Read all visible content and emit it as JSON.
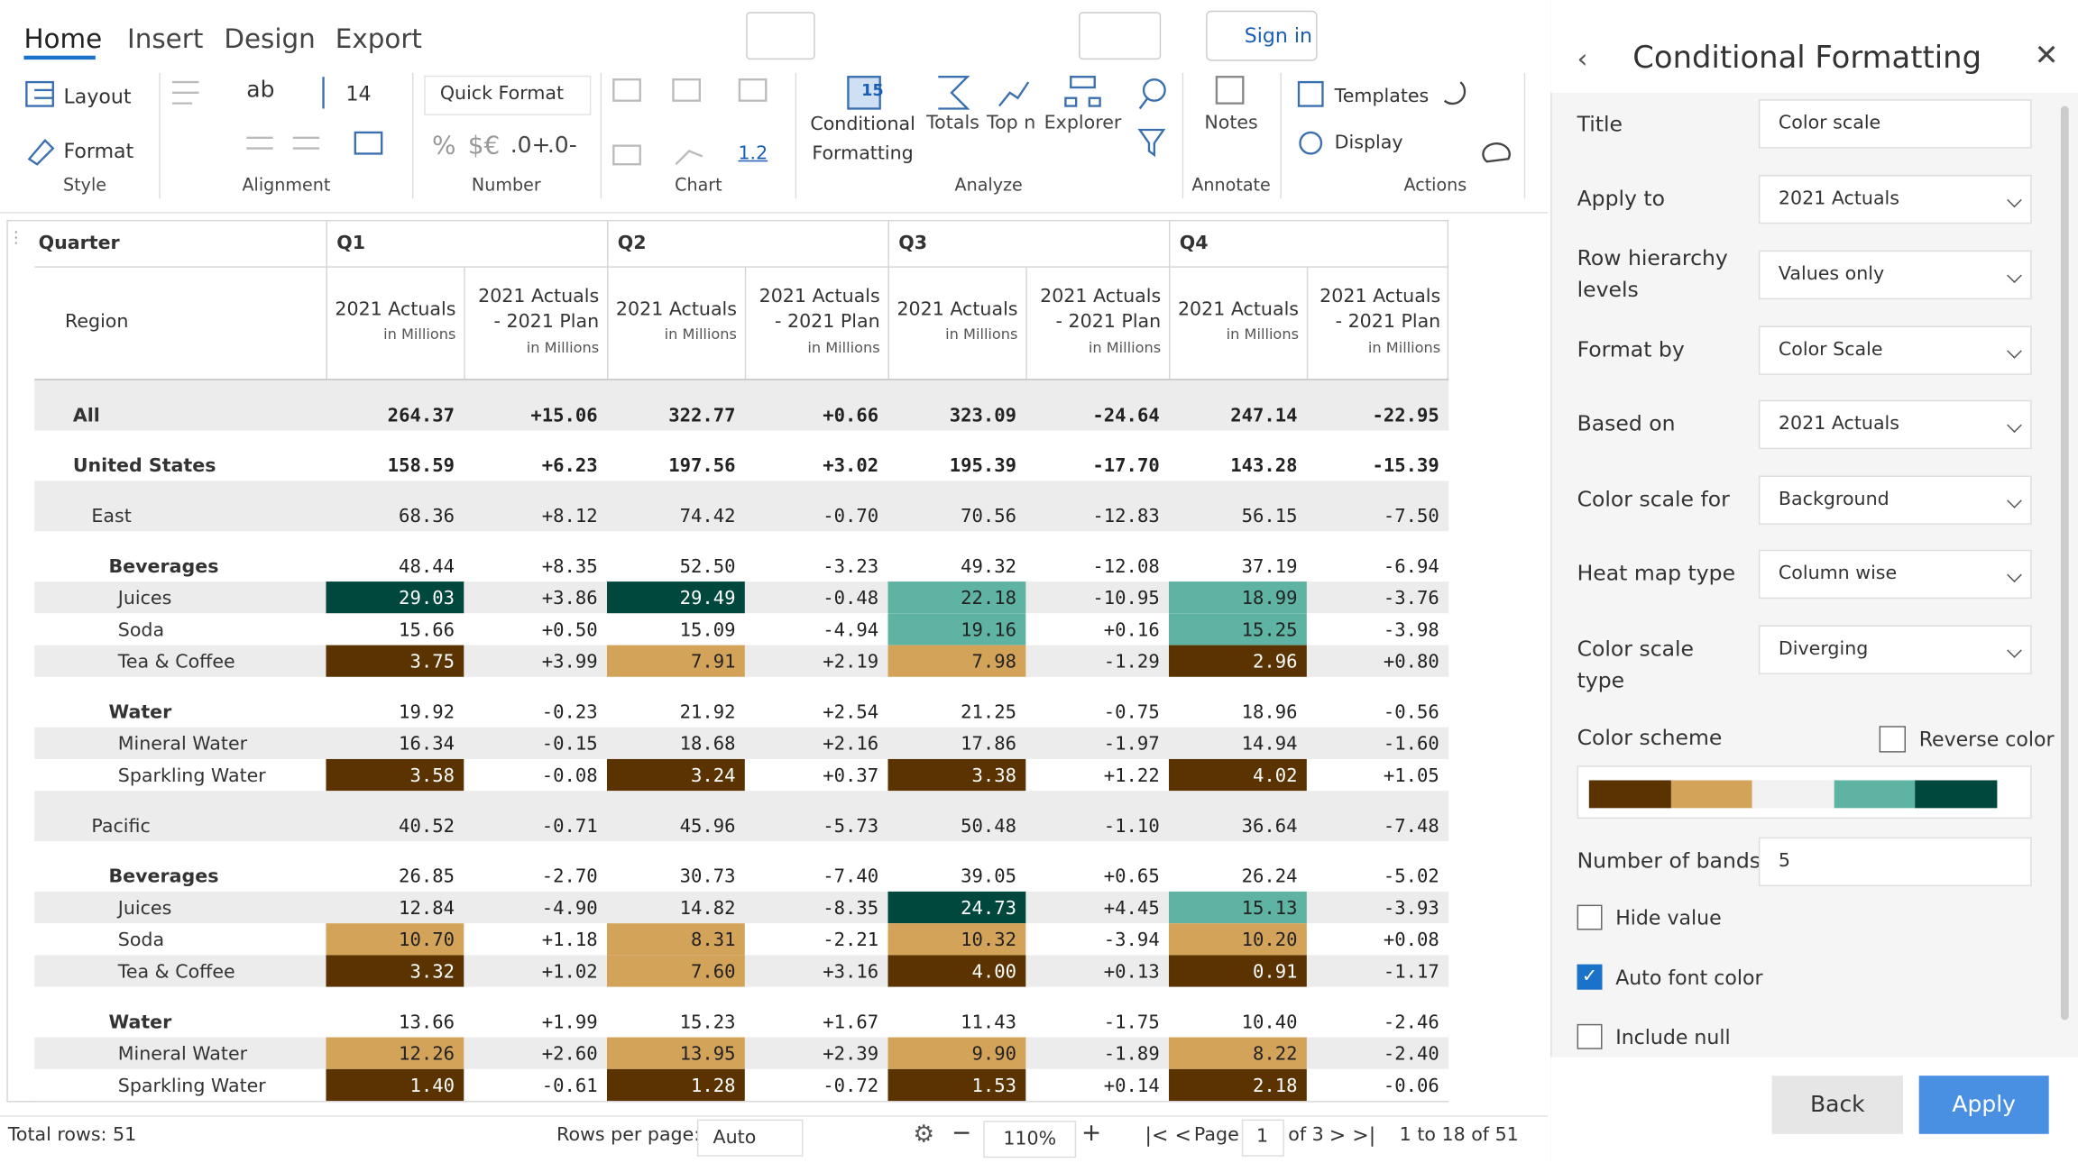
{
  "toolbar": {
    "tabs": [
      "Home",
      "Insert",
      "Design",
      "Export"
    ],
    "sign_in": "Sign in",
    "style": {
      "label": "Style",
      "layout": "Layout",
      "format": "Format"
    },
    "alignment": {
      "label": "Alignment",
      "wrap": "ab",
      "font_size": "14"
    },
    "number": {
      "label": "Number",
      "quick_format": "Quick Format",
      "percent": "%",
      "currency": "$€",
      "increase_decimals": ".0+",
      "decrease_decimals": ".0-"
    },
    "chart": {
      "label": "Chart",
      "value": "1.2"
    },
    "analyze": {
      "label": "Analyze",
      "conditional_formatting": "Conditional Formatting",
      "totals": "Totals",
      "top_n": "Top n",
      "explorer": "Explorer"
    },
    "annotate": {
      "label": "Annotate",
      "notes": "Notes"
    },
    "actions": {
      "label": "Actions",
      "templates": "Templates",
      "display": "Display"
    }
  },
  "table": {
    "corner": "Quarter",
    "row_header": "Region",
    "quarters": [
      "Q1",
      "Q2",
      "Q3",
      "Q4"
    ],
    "columns": [
      {
        "title": "2021 Actuals",
        "unit": "in Millions"
      },
      {
        "title": "2021 Actuals - 2021 Plan",
        "unit": "in Millions"
      },
      {
        "title": "2021 Actuals",
        "unit": "in Millions"
      },
      {
        "title": "2021 Actuals - 2021 Plan",
        "unit": "in Millions"
      },
      {
        "title": "2021 Actuals",
        "unit": "in Millions"
      },
      {
        "title": "2021 Actuals - 2021 Plan",
        "unit": "in Millions"
      },
      {
        "title": "2021 Actuals",
        "unit": "in Millions"
      },
      {
        "title": "2021 Actuals - 2021 Plan",
        "unit": "in Millions"
      }
    ],
    "rows": [
      {
        "label": "All",
        "level": 0,
        "cells": [
          "264.37",
          "+15.06",
          "322.77",
          "+0.66",
          "323.09",
          "-24.64",
          "247.14",
          "-22.95"
        ],
        "fills": [
          null,
          null,
          null,
          null,
          null,
          null,
          null,
          null
        ]
      },
      {
        "label": "United States",
        "level": 1,
        "cells": [
          "158.59",
          "+6.23",
          "197.56",
          "+3.02",
          "195.39",
          "-17.70",
          "143.28",
          "-15.39"
        ],
        "fills": [
          null,
          null,
          null,
          null,
          null,
          null,
          null,
          null
        ]
      },
      {
        "label": "East",
        "level": 2,
        "cells": [
          "68.36",
          "+8.12",
          "74.42",
          "-0.70",
          "70.56",
          "-12.83",
          "56.15",
          "-7.50"
        ],
        "fills": [
          null,
          null,
          null,
          null,
          null,
          null,
          null,
          null
        ]
      },
      {
        "label": "Beverages",
        "level": 3,
        "cells": [
          "48.44",
          "+8.35",
          "52.50",
          "-3.23",
          "49.32",
          "-12.08",
          "37.19",
          "-6.94"
        ],
        "fills": [
          null,
          null,
          null,
          null,
          null,
          null,
          null,
          null
        ]
      },
      {
        "label": "Juices",
        "level": 4,
        "cells": [
          "29.03",
          "+3.86",
          "29.49",
          "-0.48",
          "22.18",
          "-10.95",
          "18.99",
          "-3.76"
        ],
        "fills": [
          "#00473e",
          null,
          "#00473e",
          null,
          "#5fb3a3",
          null,
          "#5fb3a3",
          null
        ]
      },
      {
        "label": "Soda",
        "level": 4,
        "cells": [
          "15.66",
          "+0.50",
          "15.09",
          "-4.94",
          "19.16",
          "+0.16",
          "15.25",
          "-3.98"
        ],
        "fills": [
          null,
          null,
          null,
          null,
          "#5fb3a3",
          null,
          "#5fb3a3",
          null
        ]
      },
      {
        "label": "Tea & Coffee",
        "level": 4,
        "cells": [
          "3.75",
          "+3.99",
          "7.91",
          "+2.19",
          "7.98",
          "-1.29",
          "2.96",
          "+0.80"
        ],
        "fills": [
          "#5a3300",
          null,
          "#d4a35a",
          null,
          "#d4a35a",
          null,
          "#5a3300",
          null
        ]
      },
      {
        "label": "Water",
        "level": 3,
        "cells": [
          "19.92",
          "-0.23",
          "21.92",
          "+2.54",
          "21.25",
          "-0.75",
          "18.96",
          "-0.56"
        ],
        "fills": [
          null,
          null,
          null,
          null,
          null,
          null,
          null,
          null
        ]
      },
      {
        "label": "Mineral Water",
        "level": 4,
        "cells": [
          "16.34",
          "-0.15",
          "18.68",
          "+2.16",
          "17.86",
          "-1.97",
          "14.94",
          "-1.60"
        ],
        "fills": [
          null,
          null,
          null,
          null,
          null,
          null,
          null,
          null
        ]
      },
      {
        "label": "Sparkling Water",
        "level": 4,
        "cells": [
          "3.58",
          "-0.08",
          "3.24",
          "+0.37",
          "3.38",
          "+1.22",
          "4.02",
          "+1.05"
        ],
        "fills": [
          "#5a3300",
          null,
          "#5a3300",
          null,
          "#5a3300",
          null,
          "#5a3300",
          null
        ]
      },
      {
        "label": "Pacific",
        "level": 2,
        "cells": [
          "40.52",
          "-0.71",
          "45.96",
          "-5.73",
          "50.48",
          "-1.10",
          "36.64",
          "-7.48"
        ],
        "fills": [
          null,
          null,
          null,
          null,
          null,
          null,
          null,
          null
        ]
      },
      {
        "label": "Beverages",
        "level": 3,
        "cells": [
          "26.85",
          "-2.70",
          "30.73",
          "-7.40",
          "39.05",
          "+0.65",
          "26.24",
          "-5.02"
        ],
        "fills": [
          null,
          null,
          null,
          null,
          null,
          null,
          null,
          null
        ]
      },
      {
        "label": "Juices",
        "level": 4,
        "cells": [
          "12.84",
          "-4.90",
          "14.82",
          "-8.35",
          "24.73",
          "+4.45",
          "15.13",
          "-3.93"
        ],
        "fills": [
          null,
          null,
          null,
          null,
          "#00473e",
          null,
          "#5fb3a3",
          null
        ]
      },
      {
        "label": "Soda",
        "level": 4,
        "cells": [
          "10.70",
          "+1.18",
          "8.31",
          "-2.21",
          "10.32",
          "-3.94",
          "10.20",
          "+0.08"
        ],
        "fills": [
          "#d4a35a",
          null,
          "#d4a35a",
          null,
          "#d4a35a",
          null,
          "#d4a35a",
          null
        ]
      },
      {
        "label": "Tea & Coffee",
        "level": 4,
        "cells": [
          "3.32",
          "+1.02",
          "7.60",
          "+3.16",
          "4.00",
          "+0.13",
          "0.91",
          "-1.17"
        ],
        "fills": [
          "#5a3300",
          null,
          "#d4a35a",
          null,
          "#5a3300",
          null,
          "#5a3300",
          null
        ]
      },
      {
        "label": "Water",
        "level": 3,
        "cells": [
          "13.66",
          "+1.99",
          "15.23",
          "+1.67",
          "11.43",
          "-1.75",
          "10.40",
          "-2.46"
        ],
        "fills": [
          null,
          null,
          null,
          null,
          null,
          null,
          null,
          null
        ]
      },
      {
        "label": "Mineral Water",
        "level": 4,
        "cells": [
          "12.26",
          "+2.60",
          "13.95",
          "+2.39",
          "9.90",
          "-1.89",
          "8.22",
          "-2.40"
        ],
        "fills": [
          "#d4a35a",
          null,
          "#d4a35a",
          null,
          "#d4a35a",
          null,
          "#d4a35a",
          null
        ]
      },
      {
        "label": "Sparkling Water",
        "level": 4,
        "cells": [
          "1.40",
          "-0.61",
          "1.28",
          "-0.72",
          "1.53",
          "+0.14",
          "2.18",
          "-0.06"
        ],
        "fills": [
          "#5a3300",
          null,
          "#5a3300",
          null,
          "#5a3300",
          null,
          "#5a3300",
          null
        ]
      }
    ]
  },
  "footer": {
    "total_rows": "Total rows: 51",
    "rows_per_page_label": "Rows per page:",
    "rows_per_page": "Auto",
    "zoom": "110%",
    "page_label": "Page",
    "page": "1",
    "page_of": "of 3",
    "range": "1 to 18 of 51"
  },
  "panel": {
    "title": "Conditional Formatting",
    "title_field": {
      "label": "Title",
      "value": "Color scale"
    },
    "dropdowns": [
      {
        "label": "Apply to",
        "value": "2021 Actuals"
      },
      {
        "label": "Row hierarchy levels",
        "value": "Values only"
      },
      {
        "label": "Format by",
        "value": "Color Scale"
      },
      {
        "label": "Based on",
        "value": "2021 Actuals"
      },
      {
        "label": "Color scale for",
        "value": "Background"
      },
      {
        "label": "Heat map type",
        "value": "Column wise"
      },
      {
        "label": "Color scale type",
        "value": "Diverging"
      }
    ],
    "color_scheme": {
      "label": "Color scheme",
      "reverse_label": "Reverse color",
      "reverse": false,
      "colors": [
        "#5a3300",
        "#d4a35a",
        "#f2f2f2",
        "#5fb3a3",
        "#00473e"
      ]
    },
    "bands_field": {
      "label": "Number of bands",
      "value": "5"
    },
    "checkboxes": [
      {
        "label": "Hide value",
        "checked": false
      },
      {
        "label": "Auto font color",
        "checked": true
      },
      {
        "label": "Include null",
        "checked": false
      }
    ],
    "back": "Back",
    "apply": "Apply"
  }
}
